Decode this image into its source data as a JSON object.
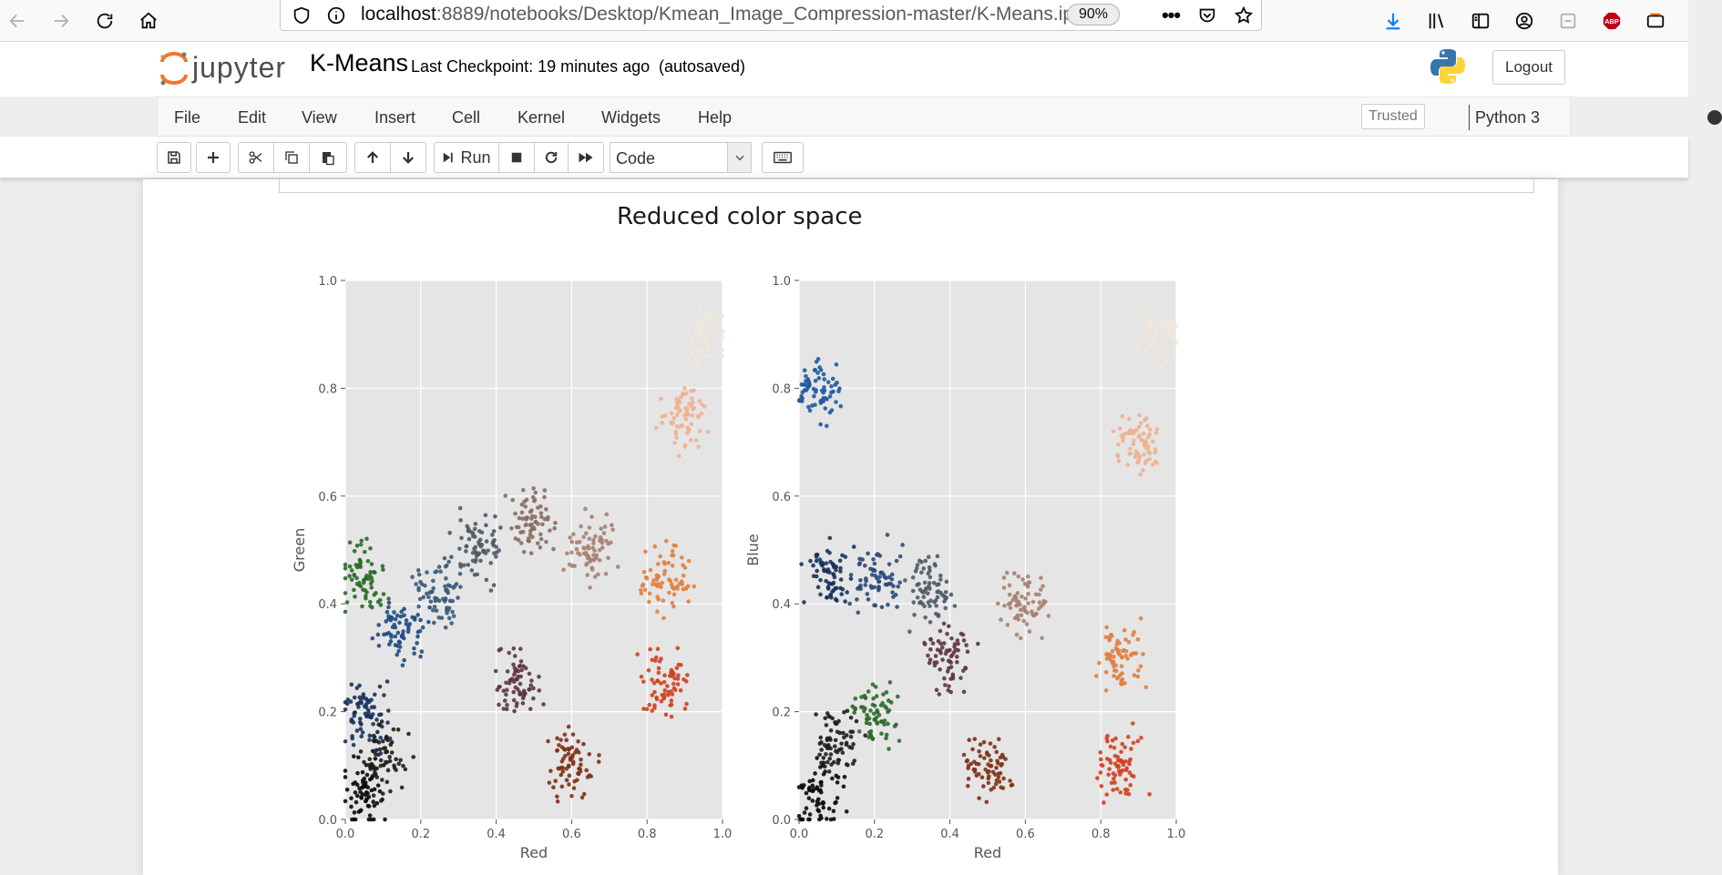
{
  "browser": {
    "url_host": "localhost",
    "url_rest": ":8889/notebooks/Desktop/Kmean_Image_Compression-master/K-Means.ip",
    "zoom": "90%",
    "overflow_menu": "•••"
  },
  "header": {
    "logo_text": "jupyter",
    "notebook_name": "K-Means",
    "checkpoint": "Last Checkpoint: 19 minutes ago",
    "autosave": "(autosaved)",
    "logout_label": "Logout"
  },
  "menubar": {
    "items": [
      "File",
      "Edit",
      "View",
      "Insert",
      "Cell",
      "Kernel",
      "Widgets",
      "Help"
    ],
    "trusted_label": "Trusted",
    "kernel_name": "Python 3"
  },
  "toolbar": {
    "run_label": "Run",
    "cell_type": "Code"
  },
  "figure": {
    "title": "Reduced color space"
  },
  "chart_data": [
    {
      "type": "scatter",
      "title": "",
      "xlabel": "Red",
      "ylabel": "Green",
      "xlim": [
        0.0,
        1.0
      ],
      "ylim": [
        0.0,
        1.0
      ],
      "xticks": [
        "0.0",
        "0.2",
        "0.4",
        "0.6",
        "0.8",
        "1.0"
      ],
      "yticks": [
        "0.0",
        "0.2",
        "0.4",
        "0.6",
        "0.8",
        "1.0"
      ],
      "grid": true,
      "background": "#e5e5e5",
      "points_approx": [
        [
          0.05,
          0.05,
          "#0a0a0a"
        ],
        [
          0.1,
          0.12,
          "#1e1e1a"
        ],
        [
          0.05,
          0.2,
          "#17325c"
        ],
        [
          0.15,
          0.35,
          "#1f4a82"
        ],
        [
          0.25,
          0.42,
          "#3a5a78"
        ],
        [
          0.35,
          0.5,
          "#4d5a66"
        ],
        [
          0.45,
          0.25,
          "#5d3442"
        ],
        [
          0.5,
          0.55,
          "#8a6b60"
        ],
        [
          0.65,
          0.5,
          "#a88070"
        ],
        [
          0.85,
          0.45,
          "#e08040"
        ],
        [
          0.9,
          0.75,
          "#f0b090"
        ],
        [
          0.95,
          0.9,
          "#f0e8d8"
        ],
        [
          0.85,
          0.25,
          "#d04020"
        ],
        [
          0.6,
          0.1,
          "#80301a"
        ],
        [
          0.05,
          0.45,
          "#2a6a2a"
        ]
      ]
    },
    {
      "type": "scatter",
      "title": "",
      "xlabel": "Red",
      "ylabel": "Blue",
      "xlim": [
        0.0,
        1.0
      ],
      "ylim": [
        0.0,
        1.0
      ],
      "xticks": [
        "0.0",
        "0.2",
        "0.4",
        "0.6",
        "0.8",
        "1.0"
      ],
      "yticks": [
        "0.0",
        "0.2",
        "0.4",
        "0.6",
        "0.8",
        "1.0"
      ],
      "grid": true,
      "background": "#e5e5e5",
      "points_approx": [
        [
          0.05,
          0.05,
          "#0a0a0a"
        ],
        [
          0.1,
          0.15,
          "#1e1e1a"
        ],
        [
          0.08,
          0.45,
          "#17325c"
        ],
        [
          0.2,
          0.45,
          "#2a4a78"
        ],
        [
          0.35,
          0.42,
          "#4d5a66"
        ],
        [
          0.4,
          0.3,
          "#5d3442"
        ],
        [
          0.6,
          0.4,
          "#a88070"
        ],
        [
          0.85,
          0.3,
          "#e08040"
        ],
        [
          0.9,
          0.7,
          "#f0b090"
        ],
        [
          0.95,
          0.9,
          "#f0e8d8"
        ],
        [
          0.85,
          0.1,
          "#d04020"
        ],
        [
          0.5,
          0.1,
          "#80301a"
        ],
        [
          0.05,
          0.8,
          "#1e5aa0"
        ],
        [
          0.2,
          0.2,
          "#2a6a2a"
        ]
      ]
    }
  ]
}
